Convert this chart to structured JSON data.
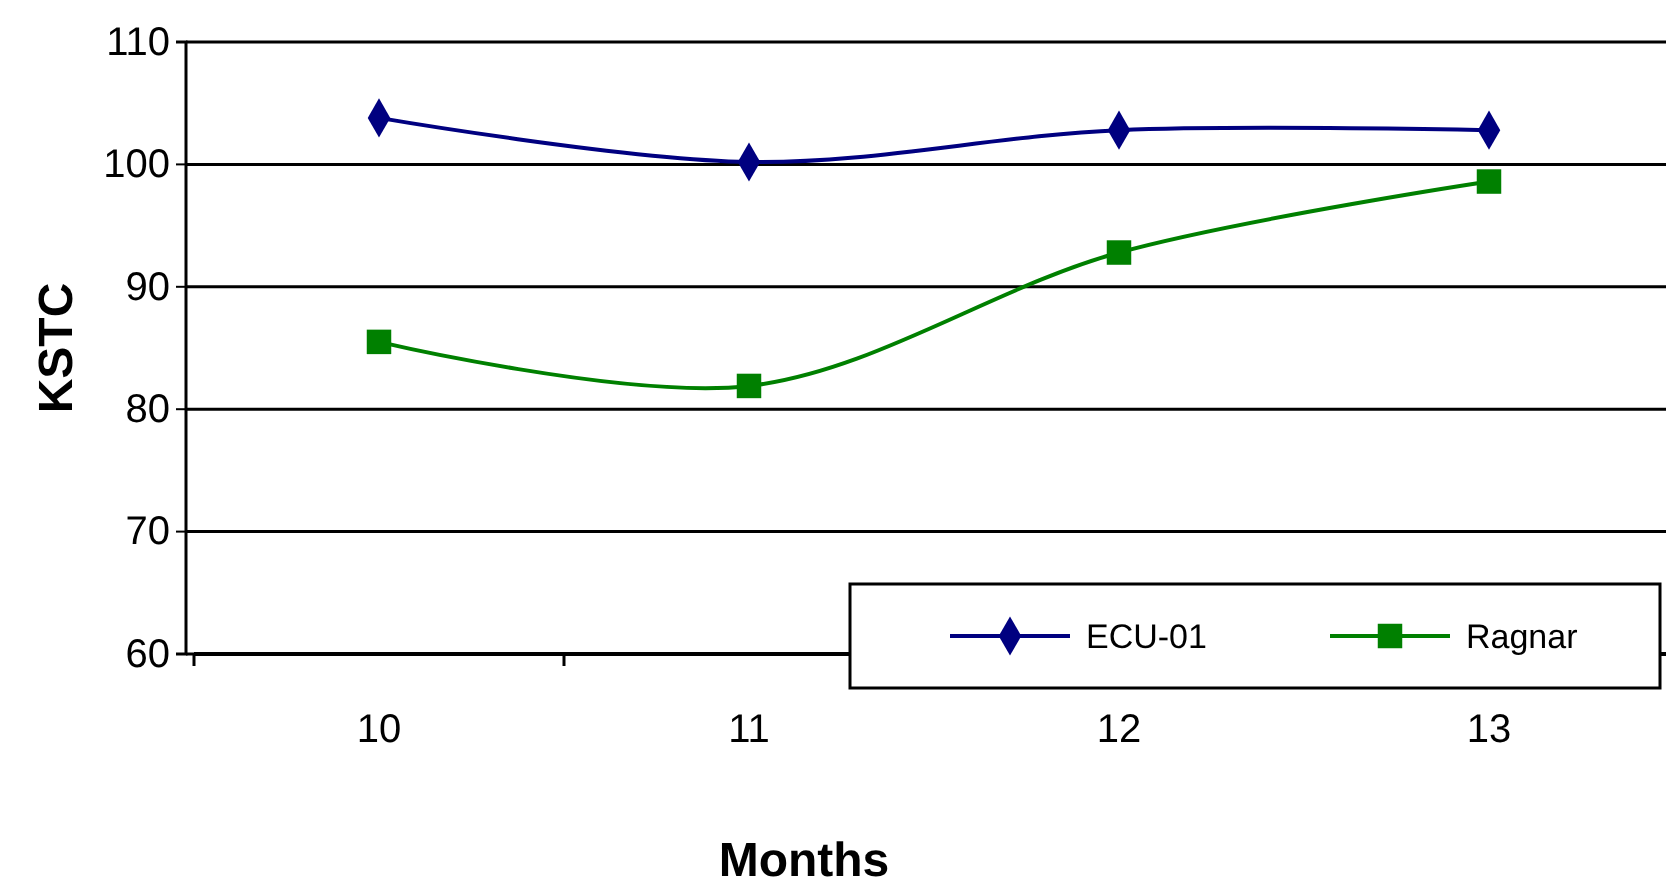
{
  "chart_data": {
    "type": "line",
    "xlabel": "Months",
    "ylabel": "KSTC",
    "categories": [
      "10",
      "11",
      "12",
      "13"
    ],
    "series": [
      {
        "name": "ECU-01",
        "color": "#000080",
        "values": [
          103.8,
          100.2,
          102.8,
          102.8
        ],
        "marker": "diamond"
      },
      {
        "name": "Ragnar",
        "color": "#008000",
        "values": [
          85.5,
          81.9,
          92.8,
          98.6
        ],
        "marker": "square"
      }
    ],
    "ylim": [
      60,
      110
    ],
    "yticks": [
      60,
      70,
      80,
      90,
      100,
      110
    ],
    "grid": "y",
    "legend": "bottom right",
    "line_style": "solid"
  }
}
